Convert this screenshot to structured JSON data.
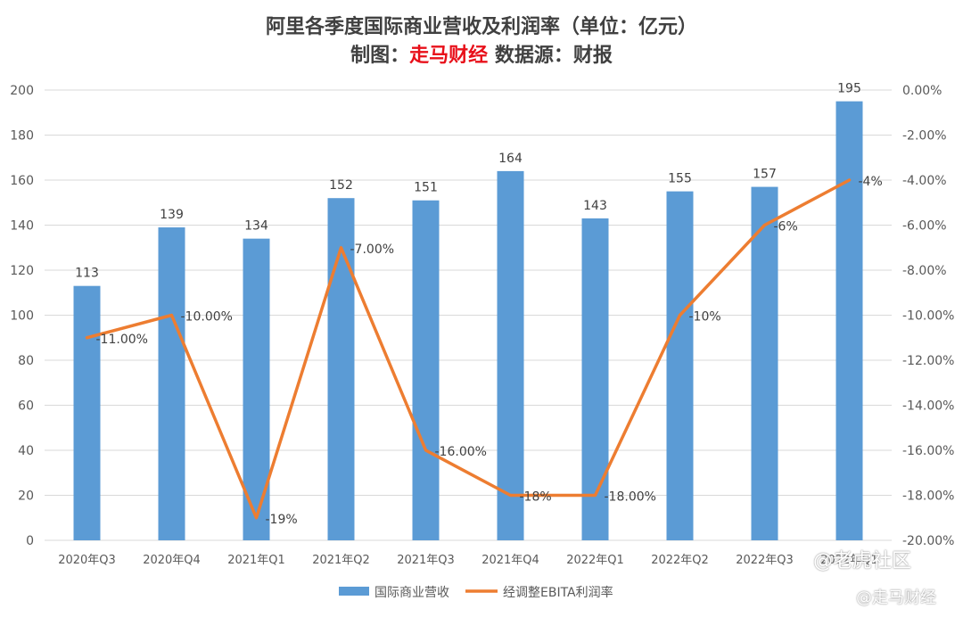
{
  "title": {
    "line1": "阿里各季度国际商业营收及利润率（单位：亿元）",
    "line2_prefix": "制图：",
    "line2_brand": "走马财经",
    "line2_source": " 数据源：财报"
  },
  "colors": {
    "bar": "#5b9bd5",
    "line": "#ed7d31",
    "grid": "#d9d9d9",
    "brand_red": "#e8101a"
  },
  "chart_data": {
    "type": "bar",
    "categories": [
      "2020年Q3",
      "2020年Q4",
      "2021年Q1",
      "2021年Q2",
      "2021年Q3",
      "2021年Q4",
      "2022年Q1",
      "2022年Q2",
      "2022年Q3",
      "2022年Q1"
    ],
    "series": [
      {
        "name": "国际商业营收",
        "type": "bar",
        "axis": "left",
        "values": [
          113,
          139,
          134,
          152,
          151,
          164,
          143,
          155,
          157,
          195
        ],
        "labels": [
          "113",
          "139",
          "134",
          "152",
          "151",
          "164",
          "143",
          "155",
          "157",
          "195"
        ]
      },
      {
        "name": "经调整EBITA利润率",
        "type": "line",
        "axis": "right",
        "values": [
          -11,
          -10,
          -19,
          -7,
          -16,
          -18,
          -18,
          -10,
          -6,
          -4
        ],
        "labels": [
          "-11.00%",
          "-10.00%",
          "-19%",
          "-7.00%",
          "-16.00%",
          "-18%",
          "-18.00%",
          "-10%",
          "-6%",
          "-4%"
        ]
      }
    ],
    "ylim": [
      0,
      200
    ],
    "y_ticks": [
      "0",
      "20",
      "40",
      "60",
      "80",
      "100",
      "120",
      "140",
      "160",
      "180",
      "200"
    ],
    "y2lim": [
      -20,
      0
    ],
    "y2_ticks": [
      "-20.00%",
      "-18.00%",
      "-16.00%",
      "-14.00%",
      "-12.00%",
      "-10.00%",
      "-8.00%",
      "-6.00%",
      "-4.00%",
      "-2.00%",
      "0.00%"
    ],
    "grid": true,
    "legend_position": "bottom"
  },
  "watermark": {
    "tiger": "@老虎社区",
    "brand": "@走马财经"
  }
}
